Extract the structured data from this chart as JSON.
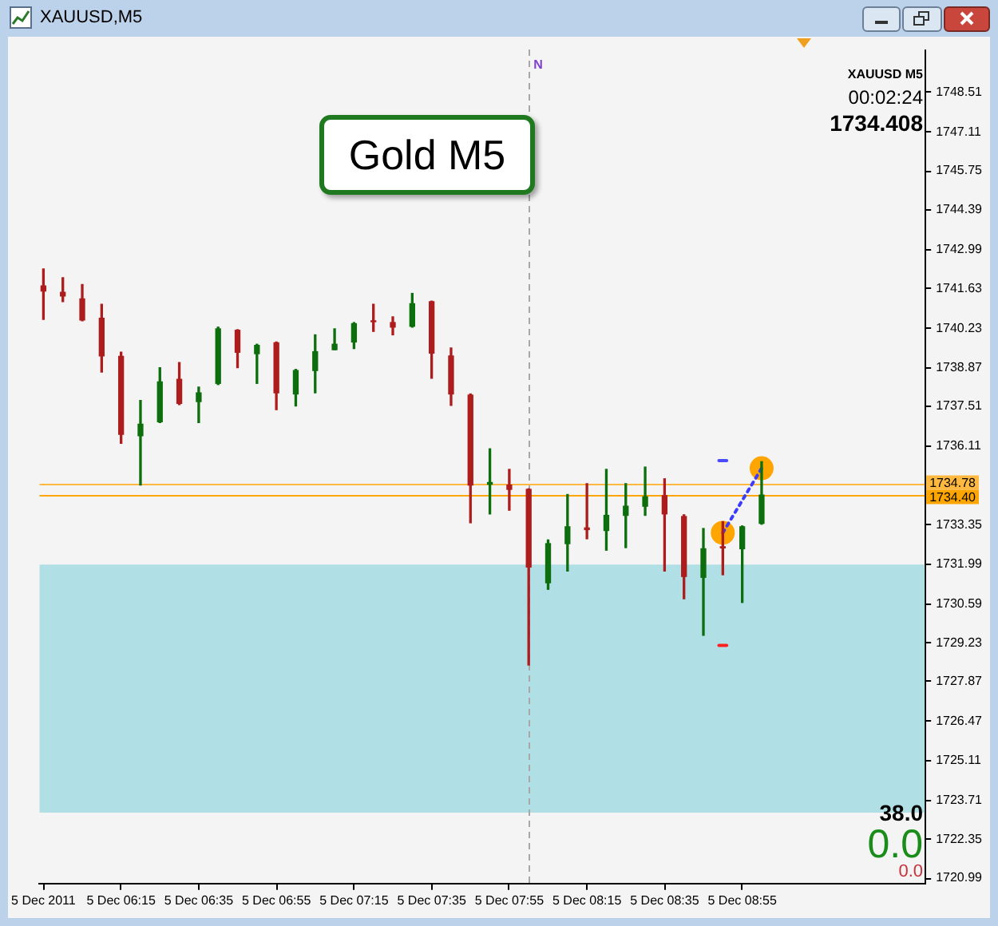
{
  "chart_data": {
    "type": "candlestick",
    "title": "XAUUSD,M5",
    "subtitle": "Gold M5",
    "x": [
      "2011-12-05T05:55",
      "2011-12-05T06:00",
      "2011-12-05T06:05",
      "2011-12-05T06:10",
      "2011-12-05T06:15",
      "2011-12-05T06:20",
      "2011-12-05T06:25",
      "2011-12-05T06:30",
      "2011-12-05T06:35",
      "2011-12-05T06:40",
      "2011-12-05T06:45",
      "2011-12-05T06:50",
      "2011-12-05T06:55",
      "2011-12-05T07:00",
      "2011-12-05T07:05",
      "2011-12-05T07:10",
      "2011-12-05T07:15",
      "2011-12-05T07:20",
      "2011-12-05T07:25",
      "2011-12-05T07:30",
      "2011-12-05T07:35",
      "2011-12-05T07:40",
      "2011-12-05T07:45",
      "2011-12-05T07:50",
      "2011-12-05T07:55",
      "2011-12-05T08:00",
      "2011-12-05T08:05",
      "2011-12-05T08:10",
      "2011-12-05T08:15",
      "2011-12-05T08:20",
      "2011-12-05T08:25",
      "2011-12-05T08:30",
      "2011-12-05T08:35",
      "2011-12-05T08:40",
      "2011-12-05T08:45",
      "2011-12-05T08:50",
      "2011-12-05T08:55",
      "2011-12-05T09:00"
    ],
    "ohlc": [
      [
        1741.72,
        1742.32,
        1740.55,
        1741.54
      ],
      [
        1741.5,
        1742.01,
        1741.17,
        1741.37
      ],
      [
        1741.27,
        1741.77,
        1740.5,
        1740.53
      ],
      [
        1740.59,
        1741.08,
        1738.71,
        1739.27
      ],
      [
        1739.26,
        1739.4,
        1736.21,
        1736.53
      ],
      [
        1736.48,
        1737.71,
        1734.75,
        1736.88
      ],
      [
        1736.97,
        1738.86,
        1736.94,
        1738.36
      ],
      [
        1738.45,
        1739.04,
        1737.57,
        1737.61
      ],
      [
        1737.67,
        1738.18,
        1736.94,
        1737.98
      ],
      [
        1738.31,
        1740.28,
        1738.27,
        1740.22
      ],
      [
        1740.17,
        1740.19,
        1738.86,
        1739.4
      ],
      [
        1739.35,
        1739.68,
        1738.31,
        1739.64
      ],
      [
        1739.73,
        1739.76,
        1737.39,
        1737.98
      ],
      [
        1737.94,
        1738.8,
        1737.52,
        1738.76
      ],
      [
        1738.76,
        1740.01,
        1737.98,
        1739.42
      ],
      [
        1739.49,
        1740.22,
        1739.49,
        1739.68
      ],
      [
        1739.76,
        1740.44,
        1739.53,
        1740.4
      ],
      [
        1740.5,
        1741.08,
        1740.13,
        1740.47
      ],
      [
        1740.44,
        1740.64,
        1740.01,
        1740.28
      ],
      [
        1740.31,
        1741.46,
        1740.28,
        1741.1
      ],
      [
        1741.17,
        1741.19,
        1738.49,
        1739.37
      ],
      [
        1739.27,
        1739.55,
        1737.54,
        1737.94
      ],
      [
        1737.9,
        1737.94,
        1733.43,
        1734.75
      ],
      [
        1734.78,
        1736.02,
        1733.74,
        1734.84
      ],
      [
        1734.75,
        1735.3,
        1733.87,
        1734.6
      ],
      [
        1734.6,
        1734.62,
        1728.45,
        1731.88
      ],
      [
        1731.33,
        1732.83,
        1731.1,
        1732.7
      ],
      [
        1732.7,
        1734.42,
        1731.74,
        1733.29
      ],
      [
        1733.25,
        1734.8,
        1732.87,
        1733.19
      ],
      [
        1733.16,
        1735.3,
        1732.47,
        1733.69
      ],
      [
        1733.69,
        1734.8,
        1732.56,
        1734.01
      ],
      [
        1734.01,
        1735.38,
        1733.69,
        1734.34
      ],
      [
        1734.38,
        1734.97,
        1731.74,
        1733.74
      ],
      [
        1733.65,
        1733.71,
        1730.77,
        1731.55
      ],
      [
        1731.52,
        1733.23,
        1729.49,
        1732.52
      ],
      [
        1732.59,
        1733.47,
        1731.61,
        1732.55
      ],
      [
        1732.52,
        1733.32,
        1730.64,
        1733.29
      ],
      [
        1733.41,
        1735.57,
        1733.38,
        1734.4
      ]
    ],
    "colors": [
      "#ad1d1d",
      "#ad1d1d",
      "#ad1d1d",
      "#ad1d1d",
      "#ad1d1d",
      "#0d6e0d",
      "#0d6e0d",
      "#ad1d1d",
      "#0d6e0d",
      "#0d6e0d",
      "#ad1d1d",
      "#0d6e0d",
      "#ad1d1d",
      "#0d6e0d",
      "#0d6e0d",
      "#0d6e0d",
      "#0d6e0d",
      "#ad1d1d",
      "#ad1d1d",
      "#0d6e0d",
      "#ad1d1d",
      "#ad1d1d",
      "#ad1d1d",
      "#0d6e0d",
      "#ad1d1d",
      "#ad1d1d",
      "#0d6e0d",
      "#0d6e0d",
      "#ad1d1d",
      "#0d6e0d",
      "#0d6e0d",
      "#0d6e0d",
      "#ad1d1d",
      "#ad1d1d",
      "#0d6e0d",
      "#ad1d1d",
      "#0d6e0d",
      "#0d6e0d"
    ],
    "xlim": [
      "2011-12-05T05:54",
      "2011-12-05T09:42"
    ],
    "xticks": [
      {
        "value": "2011-12-05T05:55",
        "label": "5 Dec 2011"
      },
      {
        "value": "2011-12-05T06:15",
        "label": "5 Dec 06:15"
      },
      {
        "value": "2011-12-05T06:35",
        "label": "5 Dec 06:35"
      },
      {
        "value": "2011-12-05T06:55",
        "label": "5 Dec 06:55"
      },
      {
        "value": "2011-12-05T07:15",
        "label": "5 Dec 07:15"
      },
      {
        "value": "2011-12-05T07:35",
        "label": "5 Dec 07:35"
      },
      {
        "value": "2011-12-05T07:55",
        "label": "5 Dec 07:55"
      },
      {
        "value": "2011-12-05T08:15",
        "label": "5 Dec 08:15"
      },
      {
        "value": "2011-12-05T08:35",
        "label": "5 Dec 08:35"
      },
      {
        "value": "2011-12-05T08:55",
        "label": "5 Dec 08:55"
      }
    ],
    "ylim": [
      1720.8,
      1750
    ],
    "yticks": [
      1720.99,
      1722.35,
      1723.71,
      1725.11,
      1726.47,
      1727.87,
      1729.23,
      1730.59,
      1731.99,
      1733.35,
      1736.11,
      1737.51,
      1738.87,
      1740.23,
      1741.63,
      1742.99,
      1744.39,
      1745.75,
      1747.11,
      1748.51
    ],
    "series": [
      {
        "type": "line",
        "color": "#3c3cff",
        "line_style": "dotted",
        "marker": "none",
        "x": [
          "2011-12-05T08:50",
          "2011-12-05T09:00"
        ],
        "values": [
          1733.08,
          1735.34
        ]
      },
      {
        "type": "scatter",
        "color": "#ffa500",
        "marker": "circle",
        "x": [
          "2011-12-05T08:50",
          "2011-12-05T09:00"
        ],
        "values": [
          1733.08,
          1735.34
        ]
      },
      {
        "type": "line",
        "color": "#4a4aff",
        "marker": "none",
        "x": [
          "2011-12-05T08:49",
          "2011-12-05T08:51"
        ],
        "values": [
          1735.61,
          1735.61
        ]
      },
      {
        "type": "line",
        "color": "#ff2020",
        "marker": "none",
        "x": [
          "2011-12-05T08:49",
          "2011-12-05T08:51"
        ],
        "values": [
          1729.14,
          1729.14
        ]
      }
    ],
    "bands": [
      {
        "axis": "y",
        "from": 1723.28,
        "to": 1731.97,
        "color": "#b0dfe5"
      }
    ],
    "ref_lines": [
      {
        "axis": "y",
        "value": 1734.78,
        "label": "1734.78",
        "color": "#ffb940"
      },
      {
        "axis": "y",
        "value": 1734.4,
        "label": "1734.40",
        "color": "#ffa500"
      },
      {
        "axis": "x",
        "value": "2011-12-05T08:00",
        "label": "N",
        "color": "#a8a8a8",
        "line_style": "dashed"
      }
    ],
    "annotations": [
      "XAUUSD M5",
      "00:02:24",
      "1734.408",
      "38.0",
      "0.0",
      "0.0"
    ]
  }
}
